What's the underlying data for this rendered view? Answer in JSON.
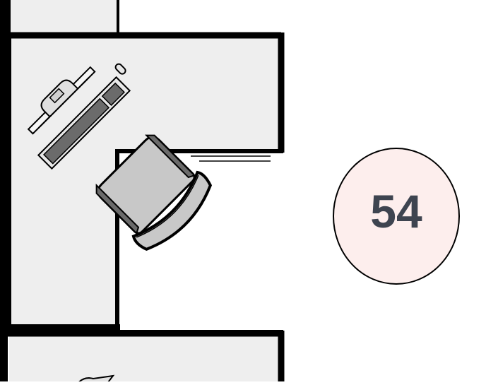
{
  "floorplan": {
    "seat": {
      "number": "54",
      "badge_fill": "#fdeeed",
      "text_color": "#3e4450"
    },
    "colors": {
      "desk_fill": "#eeeeee",
      "wall_stroke": "#000000",
      "monitor_body": "#6b6b6b",
      "chair_fill": "#c8c8c8",
      "chair_dark": "#6a6a6a"
    },
    "icons": {
      "desk": "desk-surface",
      "monitor": "monitor-icon",
      "keyboard": "keyboard-icon",
      "mouse": "mouse-icon",
      "chair": "office-chair-icon"
    }
  }
}
